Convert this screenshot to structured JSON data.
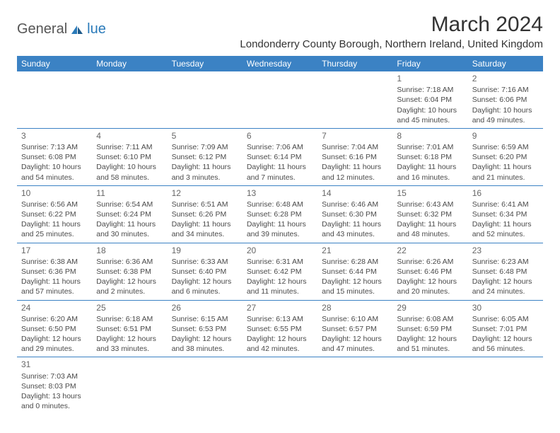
{
  "logo": {
    "part1": "General",
    "part2": "lue"
  },
  "title": "March 2024",
  "location": "Londonderry County Borough, Northern Ireland, United Kingdom",
  "day_names": [
    "Sunday",
    "Monday",
    "Tuesday",
    "Wednesday",
    "Thursday",
    "Friday",
    "Saturday"
  ],
  "colors": {
    "header_bg": "#3b82c4",
    "header_text": "#ffffff",
    "accent": "#2a7ab9",
    "text": "#4a4a4a",
    "border": "#3b82c4"
  },
  "weeks": [
    [
      null,
      null,
      null,
      null,
      null,
      {
        "n": "1",
        "sr": "Sunrise: 7:18 AM",
        "ss": "Sunset: 6:04 PM",
        "d1": "Daylight: 10 hours",
        "d2": "and 45 minutes."
      },
      {
        "n": "2",
        "sr": "Sunrise: 7:16 AM",
        "ss": "Sunset: 6:06 PM",
        "d1": "Daylight: 10 hours",
        "d2": "and 49 minutes."
      }
    ],
    [
      {
        "n": "3",
        "sr": "Sunrise: 7:13 AM",
        "ss": "Sunset: 6:08 PM",
        "d1": "Daylight: 10 hours",
        "d2": "and 54 minutes."
      },
      {
        "n": "4",
        "sr": "Sunrise: 7:11 AM",
        "ss": "Sunset: 6:10 PM",
        "d1": "Daylight: 10 hours",
        "d2": "and 58 minutes."
      },
      {
        "n": "5",
        "sr": "Sunrise: 7:09 AM",
        "ss": "Sunset: 6:12 PM",
        "d1": "Daylight: 11 hours",
        "d2": "and 3 minutes."
      },
      {
        "n": "6",
        "sr": "Sunrise: 7:06 AM",
        "ss": "Sunset: 6:14 PM",
        "d1": "Daylight: 11 hours",
        "d2": "and 7 minutes."
      },
      {
        "n": "7",
        "sr": "Sunrise: 7:04 AM",
        "ss": "Sunset: 6:16 PM",
        "d1": "Daylight: 11 hours",
        "d2": "and 12 minutes."
      },
      {
        "n": "8",
        "sr": "Sunrise: 7:01 AM",
        "ss": "Sunset: 6:18 PM",
        "d1": "Daylight: 11 hours",
        "d2": "and 16 minutes."
      },
      {
        "n": "9",
        "sr": "Sunrise: 6:59 AM",
        "ss": "Sunset: 6:20 PM",
        "d1": "Daylight: 11 hours",
        "d2": "and 21 minutes."
      }
    ],
    [
      {
        "n": "10",
        "sr": "Sunrise: 6:56 AM",
        "ss": "Sunset: 6:22 PM",
        "d1": "Daylight: 11 hours",
        "d2": "and 25 minutes."
      },
      {
        "n": "11",
        "sr": "Sunrise: 6:54 AM",
        "ss": "Sunset: 6:24 PM",
        "d1": "Daylight: 11 hours",
        "d2": "and 30 minutes."
      },
      {
        "n": "12",
        "sr": "Sunrise: 6:51 AM",
        "ss": "Sunset: 6:26 PM",
        "d1": "Daylight: 11 hours",
        "d2": "and 34 minutes."
      },
      {
        "n": "13",
        "sr": "Sunrise: 6:48 AM",
        "ss": "Sunset: 6:28 PM",
        "d1": "Daylight: 11 hours",
        "d2": "and 39 minutes."
      },
      {
        "n": "14",
        "sr": "Sunrise: 6:46 AM",
        "ss": "Sunset: 6:30 PM",
        "d1": "Daylight: 11 hours",
        "d2": "and 43 minutes."
      },
      {
        "n": "15",
        "sr": "Sunrise: 6:43 AM",
        "ss": "Sunset: 6:32 PM",
        "d1": "Daylight: 11 hours",
        "d2": "and 48 minutes."
      },
      {
        "n": "16",
        "sr": "Sunrise: 6:41 AM",
        "ss": "Sunset: 6:34 PM",
        "d1": "Daylight: 11 hours",
        "d2": "and 52 minutes."
      }
    ],
    [
      {
        "n": "17",
        "sr": "Sunrise: 6:38 AM",
        "ss": "Sunset: 6:36 PM",
        "d1": "Daylight: 11 hours",
        "d2": "and 57 minutes."
      },
      {
        "n": "18",
        "sr": "Sunrise: 6:36 AM",
        "ss": "Sunset: 6:38 PM",
        "d1": "Daylight: 12 hours",
        "d2": "and 2 minutes."
      },
      {
        "n": "19",
        "sr": "Sunrise: 6:33 AM",
        "ss": "Sunset: 6:40 PM",
        "d1": "Daylight: 12 hours",
        "d2": "and 6 minutes."
      },
      {
        "n": "20",
        "sr": "Sunrise: 6:31 AM",
        "ss": "Sunset: 6:42 PM",
        "d1": "Daylight: 12 hours",
        "d2": "and 11 minutes."
      },
      {
        "n": "21",
        "sr": "Sunrise: 6:28 AM",
        "ss": "Sunset: 6:44 PM",
        "d1": "Daylight: 12 hours",
        "d2": "and 15 minutes."
      },
      {
        "n": "22",
        "sr": "Sunrise: 6:26 AM",
        "ss": "Sunset: 6:46 PM",
        "d1": "Daylight: 12 hours",
        "d2": "and 20 minutes."
      },
      {
        "n": "23",
        "sr": "Sunrise: 6:23 AM",
        "ss": "Sunset: 6:48 PM",
        "d1": "Daylight: 12 hours",
        "d2": "and 24 minutes."
      }
    ],
    [
      {
        "n": "24",
        "sr": "Sunrise: 6:20 AM",
        "ss": "Sunset: 6:50 PM",
        "d1": "Daylight: 12 hours",
        "d2": "and 29 minutes."
      },
      {
        "n": "25",
        "sr": "Sunrise: 6:18 AM",
        "ss": "Sunset: 6:51 PM",
        "d1": "Daylight: 12 hours",
        "d2": "and 33 minutes."
      },
      {
        "n": "26",
        "sr": "Sunrise: 6:15 AM",
        "ss": "Sunset: 6:53 PM",
        "d1": "Daylight: 12 hours",
        "d2": "and 38 minutes."
      },
      {
        "n": "27",
        "sr": "Sunrise: 6:13 AM",
        "ss": "Sunset: 6:55 PM",
        "d1": "Daylight: 12 hours",
        "d2": "and 42 minutes."
      },
      {
        "n": "28",
        "sr": "Sunrise: 6:10 AM",
        "ss": "Sunset: 6:57 PM",
        "d1": "Daylight: 12 hours",
        "d2": "and 47 minutes."
      },
      {
        "n": "29",
        "sr": "Sunrise: 6:08 AM",
        "ss": "Sunset: 6:59 PM",
        "d1": "Daylight: 12 hours",
        "d2": "and 51 minutes."
      },
      {
        "n": "30",
        "sr": "Sunrise: 6:05 AM",
        "ss": "Sunset: 7:01 PM",
        "d1": "Daylight: 12 hours",
        "d2": "and 56 minutes."
      }
    ],
    [
      {
        "n": "31",
        "sr": "Sunrise: 7:03 AM",
        "ss": "Sunset: 8:03 PM",
        "d1": "Daylight: 13 hours",
        "d2": "and 0 minutes."
      },
      null,
      null,
      null,
      null,
      null,
      null
    ]
  ]
}
